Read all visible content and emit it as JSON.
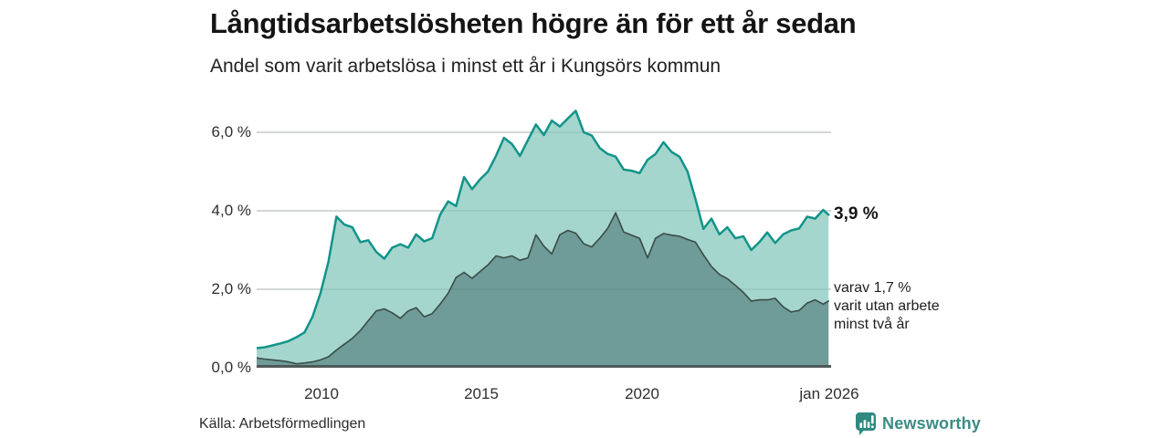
{
  "header": {
    "title": "Långtidsarbetslösheten högre än för ett år sedan",
    "subtitle": "Andel som varit arbetslösa i minst ett år i Kungsörs kommun"
  },
  "chart_data": {
    "type": "area",
    "title": "Långtidsarbetslösheten högre än för ett år sedan",
    "subtitle": "Andel som varit arbetslösa i minst ett år i Kungsörs kommun",
    "grid": true,
    "legend_position": "none",
    "unit": "%",
    "x_axis": {
      "range": [
        2008,
        2026
      ],
      "ticks": [
        {
          "x": 2010,
          "label": "2010"
        },
        {
          "x": 2015,
          "label": "2015"
        },
        {
          "x": 2020,
          "label": "2020"
        },
        {
          "x": 2026,
          "label": "jan 2026"
        }
      ]
    },
    "y_axis": {
      "range": [
        0,
        6.9
      ],
      "ticks": [
        {
          "v": 0,
          "label": "0,0 %"
        },
        {
          "v": 2,
          "label": "2,0 %"
        },
        {
          "v": 4,
          "label": "4,0 %"
        },
        {
          "v": 6,
          "label": "6,0 %"
        }
      ]
    },
    "x": [
      2008,
      2008.25,
      2008.5,
      2008.75,
      2009,
      2009.25,
      2009.5,
      2009.75,
      2010,
      2010.25,
      2010.5,
      2010.75,
      2011,
      2011.25,
      2011.5,
      2011.75,
      2012,
      2012.25,
      2012.5,
      2012.75,
      2013,
      2013.25,
      2013.5,
      2013.75,
      2014,
      2014.25,
      2014.5,
      2014.75,
      2015,
      2015.25,
      2015.5,
      2015.75,
      2016,
      2016.25,
      2016.5,
      2016.75,
      2017,
      2017.25,
      2017.5,
      2017.75,
      2018,
      2018.25,
      2018.5,
      2018.75,
      2019,
      2019.25,
      2019.5,
      2019.75,
      2020,
      2020.25,
      2020.5,
      2020.75,
      2021,
      2021.25,
      2021.5,
      2021.75,
      2022,
      2022.25,
      2022.5,
      2022.75,
      2023,
      2023.25,
      2023.5,
      2023.75,
      2024,
      2024.25,
      2024.5,
      2024.75,
      2025,
      2025.25,
      2025.5,
      2025.75,
      2025.92
    ],
    "series": [
      {
        "name": "Arbetslösa minst ett år",
        "line_color": "#12948a",
        "fill_color": "#a5d6cd",
        "line_width": 2.5,
        "latest_value": 3.9,
        "values": [
          0.5,
          0.52,
          0.57,
          0.62,
          0.68,
          0.78,
          0.9,
          1.3,
          1.9,
          2.7,
          3.85,
          3.65,
          3.58,
          3.2,
          3.25,
          2.95,
          2.78,
          3.06,
          3.15,
          3.06,
          3.4,
          3.22,
          3.3,
          3.9,
          4.24,
          4.12,
          4.86,
          4.55,
          4.8,
          5.0,
          5.4,
          5.86,
          5.7,
          5.4,
          5.8,
          6.2,
          5.93,
          6.3,
          6.15,
          6.35,
          6.55,
          6.0,
          5.92,
          5.6,
          5.45,
          5.38,
          5.05,
          5.02,
          4.96,
          5.3,
          5.45,
          5.75,
          5.5,
          5.38,
          5.0,
          4.3,
          3.54,
          3.8,
          3.4,
          3.58,
          3.3,
          3.35,
          3.0,
          3.2,
          3.45,
          3.18,
          3.4,
          3.5,
          3.55,
          3.85,
          3.8,
          4.02,
          3.9
        ]
      },
      {
        "name": "Utan arbete minst två år",
        "line_color": "#3a4c49",
        "fill_color": "#6f9c98",
        "line_width": 1.6,
        "latest_value": 1.7,
        "values": [
          0.25,
          0.22,
          0.2,
          0.18,
          0.15,
          0.1,
          0.12,
          0.15,
          0.2,
          0.28,
          0.45,
          0.6,
          0.75,
          0.95,
          1.2,
          1.45,
          1.5,
          1.4,
          1.26,
          1.45,
          1.53,
          1.3,
          1.38,
          1.62,
          1.9,
          2.3,
          2.43,
          2.28,
          2.45,
          2.62,
          2.85,
          2.8,
          2.85,
          2.74,
          2.8,
          3.39,
          3.1,
          2.9,
          3.39,
          3.5,
          3.43,
          3.16,
          3.08,
          3.3,
          3.55,
          3.95,
          3.46,
          3.38,
          3.3,
          2.8,
          3.3,
          3.42,
          3.38,
          3.35,
          3.27,
          3.2,
          2.88,
          2.58,
          2.38,
          2.27,
          2.1,
          1.92,
          1.7,
          1.73,
          1.73,
          1.77,
          1.55,
          1.42,
          1.46,
          1.65,
          1.73,
          1.62,
          1.7
        ]
      }
    ],
    "annotations": {
      "latest_total": "3,9 %",
      "breakdown_lines": [
        "varav 1,7 %",
        "varit utan arbete",
        "minst två år"
      ]
    }
  },
  "footer": {
    "source": "Källa: Arbetsförmedlingen",
    "brand": "Newsworthy"
  },
  "colors": {
    "accent_teal": "#12948a",
    "fill_light": "#a5d6cd",
    "fill_dark": "#6f9c98",
    "brand_teal": "#2f8a82",
    "grid": "#dbdbdb",
    "axis_line": "#4f5a58"
  }
}
